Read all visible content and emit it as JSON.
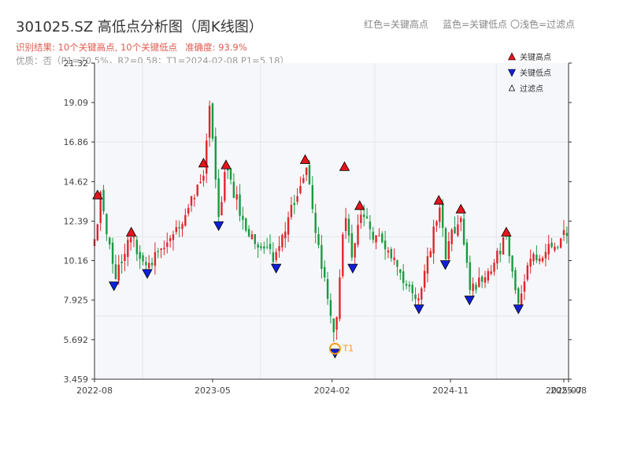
{
  "header": {
    "title": "301025.SZ 高低点分析图（周K线图）",
    "legend_red": "红色=关键高点",
    "legend_blue": "蓝色=关键低点",
    "legend_filtered": "〇浅色=过滤点",
    "result_text": "识别结果: 10个关键高点, 10个关键低点",
    "accuracy_text": "准确度: 93.9%",
    "quality_text": "优质：否（P1=70.5%，R2=0.58；T1=2024-02-08 P1=5.18）"
  },
  "colors": {
    "up": "#e0262c",
    "down": "#1a9a41",
    "high_marker": "#e8141b",
    "low_marker": "#1020d8",
    "t1": "#f39c12"
  },
  "chart_data": {
    "type": "candlestick",
    "y_ticks": [
      "3.459",
      "5.692",
      "7.925",
      "10.16",
      "12.39",
      "14.62",
      "16.86",
      "19.09",
      "21.32"
    ],
    "ylim": [
      3.459,
      21.32
    ],
    "x_ticks": [
      {
        "label": "2022-08",
        "date": "2022-08-01"
      },
      {
        "label": "2023-05",
        "date": "2023-05-01"
      },
      {
        "label": "2024-02",
        "date": "2024-02-01"
      },
      {
        "label": "2024-11",
        "date": "2024-11-01"
      },
      {
        "label": "2025-07",
        "date": "2025-07-21"
      },
      {
        "label": "2025-08",
        "date": "2025-08-01"
      }
    ],
    "xlim": [
      "2022-08-01",
      "2025-08-01"
    ],
    "legend": {
      "position": "top-right",
      "items": [
        {
          "label": "关键高点",
          "symbol": "up-triangle-red"
        },
        {
          "label": "关键低点",
          "symbol": "down-triangle-blue"
        },
        {
          "label": "过滤点",
          "symbol": "up-triangle-outline"
        }
      ]
    },
    "anchors": [
      {
        "date": "2022-08-01",
        "price": 11.0
      },
      {
        "date": "2022-08-15",
        "price": 13.6
      },
      {
        "date": "2022-09-15",
        "price": 9.3
      },
      {
        "date": "2022-10-25",
        "price": 11.5
      },
      {
        "date": "2022-12-01",
        "price": 9.9
      },
      {
        "date": "2023-02-10",
        "price": 11.8
      },
      {
        "date": "2023-04-10",
        "price": 15.4
      },
      {
        "date": "2023-04-25",
        "price": 19.5
      },
      {
        "date": "2023-05-15",
        "price": 12.6
      },
      {
        "date": "2023-06-01",
        "price": 15.2
      },
      {
        "date": "2023-07-20",
        "price": 11.8
      },
      {
        "date": "2023-09-25",
        "price": 10.3
      },
      {
        "date": "2023-12-01",
        "price": 15.5
      },
      {
        "date": "2024-02-08",
        "price": 5.4
      },
      {
        "date": "2024-03-01",
        "price": 13.5
      },
      {
        "date": "2024-03-20",
        "price": 10.3
      },
      {
        "date": "2024-04-05",
        "price": 12.8
      },
      {
        "date": "2024-08-20",
        "price": 7.9
      },
      {
        "date": "2024-10-05",
        "price": 13.2
      },
      {
        "date": "2024-10-20",
        "price": 10.5
      },
      {
        "date": "2024-11-25",
        "price": 12.8
      },
      {
        "date": "2024-12-15",
        "price": 8.4
      },
      {
        "date": "2025-02-10",
        "price": 10.2
      },
      {
        "date": "2025-03-10",
        "price": 11.4
      },
      {
        "date": "2025-04-07",
        "price": 8.0
      },
      {
        "date": "2025-05-01",
        "price": 9.9
      },
      {
        "date": "2025-08-01",
        "price": 11.8
      }
    ],
    "key_highs": [
      {
        "date": "2022-08-08",
        "price": 13.6
      },
      {
        "date": "2022-10-25",
        "price": 11.5
      },
      {
        "date": "2023-04-10",
        "price": 15.4
      },
      {
        "date": "2023-06-01",
        "price": 15.3
      },
      {
        "date": "2023-12-01",
        "price": 15.6
      },
      {
        "date": "2024-03-01",
        "price": 15.2
      },
      {
        "date": "2024-04-05",
        "price": 13.0
      },
      {
        "date": "2024-10-05",
        "price": 13.3
      },
      {
        "date": "2024-11-25",
        "price": 12.8
      },
      {
        "date": "2025-03-10",
        "price": 11.5
      }
    ],
    "key_lows": [
      {
        "date": "2022-09-15",
        "price": 9.0
      },
      {
        "date": "2022-12-01",
        "price": 9.7
      },
      {
        "date": "2023-05-15",
        "price": 12.4
      },
      {
        "date": "2023-09-25",
        "price": 10.0
      },
      {
        "date": "2024-02-08",
        "price": 5.2
      },
      {
        "date": "2024-03-20",
        "price": 10.0
      },
      {
        "date": "2024-08-20",
        "price": 7.7
      },
      {
        "date": "2024-10-20",
        "price": 10.2
      },
      {
        "date": "2024-12-15",
        "price": 8.2
      },
      {
        "date": "2025-04-07",
        "price": 7.7
      }
    ],
    "t1": {
      "label": "T1",
      "date": "2024-02-08",
      "price": 5.18
    }
  }
}
